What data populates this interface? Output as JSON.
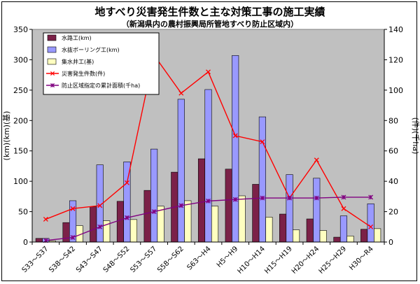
{
  "chart_data": {
    "type": "bar",
    "title": "地すべり災害発生件数と主な対策工事の施工実績",
    "subtitle": "（新潟県内の農村振興局所管地すべり防止区域内）",
    "categories": [
      "S33～S37",
      "S38～S42",
      "S43～S47",
      "S48～S52",
      "S53～S57",
      "S58～S62",
      "S63～H4",
      "H5～H9",
      "H10～H14",
      "H15～H19",
      "H20～H24",
      "H25～H29",
      "H30～R4"
    ],
    "ylabel_left": "(km)(km)(基)",
    "ylabel_right": "(件)(千ha)",
    "ylim_left": [
      0,
      350
    ],
    "ylim_right": [
      0,
      140
    ],
    "yticks_left": [
      "0",
      "50",
      "100",
      "150",
      "200",
      "250",
      "300",
      "350"
    ],
    "yticks_right": [
      "0",
      "20",
      "40",
      "60",
      "80",
      "100",
      "120",
      "140"
    ],
    "grid": false,
    "legend_position": "top-left",
    "series": [
      {
        "name": "水路工(km)",
        "kind": "bar",
        "axis": "left",
        "color": "#7b2148",
        "values": [
          6,
          32,
          58,
          67,
          85,
          115,
          137,
          120,
          95,
          46,
          38,
          8,
          21
        ]
      },
      {
        "name": "水抜ボーリング工(km)",
        "kind": "bar",
        "axis": "left",
        "color": "#9999ff",
        "values": [
          6,
          68,
          127,
          132,
          153,
          235,
          251,
          307,
          206,
          111,
          105,
          43,
          63
        ]
      },
      {
        "name": "集水井工(基)",
        "kind": "bar",
        "axis": "left",
        "color": "#ffffc0",
        "values": [
          2,
          27,
          35,
          37,
          59,
          68,
          59,
          76,
          41,
          20,
          19,
          10,
          22
        ]
      },
      {
        "name": "災害発生件数(件)",
        "kind": "line",
        "axis": "right",
        "color": "#ff0000",
        "marker": "x",
        "values": [
          15,
          22,
          24,
          39,
          123,
          98,
          112,
          70,
          66,
          29,
          54,
          22,
          10
        ]
      },
      {
        "name": "防止区域指定の累計面積(千ha)",
        "kind": "line",
        "axis": "right",
        "color": "#800080",
        "marker": "asterisk",
        "values": [
          1,
          3,
          10,
          16,
          20,
          24,
          27,
          28,
          29,
          29,
          29,
          29.5,
          29.5
        ]
      }
    ]
  }
}
